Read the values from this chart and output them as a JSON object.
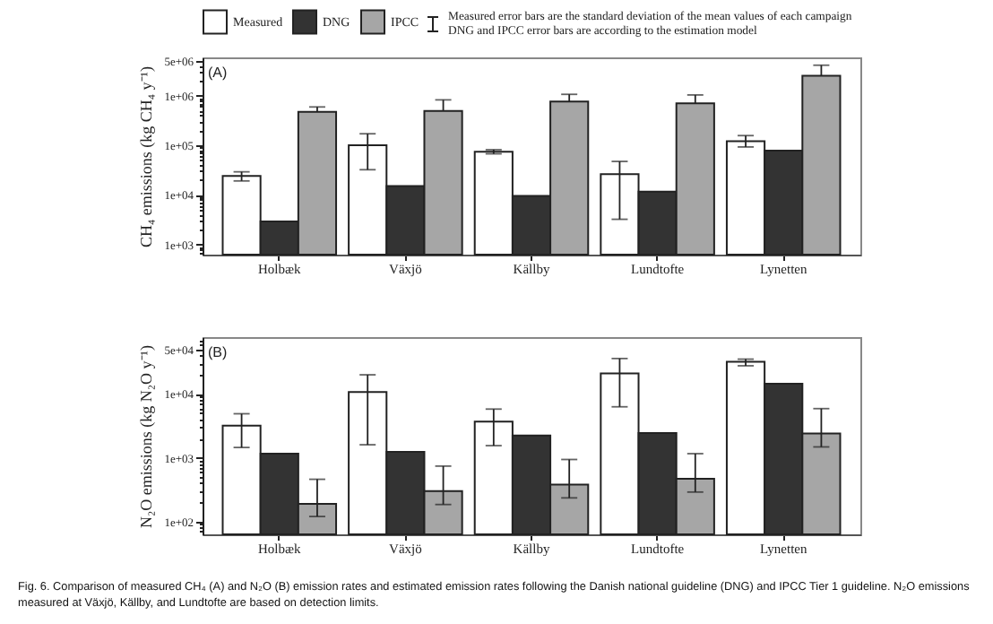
{
  "chart_data": [
    {
      "type": "bar",
      "title": "(A)",
      "ylabel": "CH₄ emissions (kg CH₄ y⁻¹)",
      "categories": [
        "Holbæk",
        "Växjö",
        "Källby",
        "Lundtofte",
        "Lynetten"
      ],
      "series": [
        {
          "name": "Measured",
          "color": "#ffffff",
          "values": [
            24000,
            100000,
            74000,
            26000,
            120000
          ],
          "errors": [
            [
              19000,
              29000
            ],
            [
              32000,
              170000
            ],
            [
              67000,
              81000
            ],
            [
              3200,
              47000
            ],
            [
              92000,
              156000
            ]
          ]
        },
        {
          "name": "DNG",
          "color": "#333333",
          "values": [
            2900,
            15000,
            9500,
            11500,
            78000
          ]
        },
        {
          "name": "IPCC",
          "color": "#a6a6a6",
          "values": [
            470000,
            490000,
            760000,
            700000,
            2500000
          ],
          "errors": [
            [
              470000,
              590000
            ],
            [
              490000,
              820000
            ],
            [
              760000,
              1060000
            ],
            [
              700000,
              1030000
            ],
            [
              2500000,
              4100000
            ]
          ]
        }
      ],
      "log": true,
      "ylim": [
        620,
        5900000
      ],
      "yticks": [
        {
          "value": 700,
          "label": null
        },
        {
          "value": 800,
          "label": null
        },
        {
          "value": 900,
          "label": null
        },
        {
          "value": 1000,
          "label": "1e+03"
        },
        {
          "value": 2000,
          "label": null
        },
        {
          "value": 3000,
          "label": null
        },
        {
          "value": 4000,
          "label": null
        },
        {
          "value": 5000,
          "label": null
        },
        {
          "value": 6000,
          "label": null
        },
        {
          "value": 7000,
          "label": null
        },
        {
          "value": 8000,
          "label": null
        },
        {
          "value": 9000,
          "label": null
        },
        {
          "value": 10000,
          "label": "1e+04"
        },
        {
          "value": 20000,
          "label": null
        },
        {
          "value": 30000,
          "label": null
        },
        {
          "value": 40000,
          "label": null
        },
        {
          "value": 50000,
          "label": null
        },
        {
          "value": 60000,
          "label": null
        },
        {
          "value": 70000,
          "label": null
        },
        {
          "value": 80000,
          "label": null
        },
        {
          "value": 90000,
          "label": null
        },
        {
          "value": 100000,
          "label": "1e+05"
        },
        {
          "value": 200000,
          "label": null
        },
        {
          "value": 300000,
          "label": null
        },
        {
          "value": 400000,
          "label": null
        },
        {
          "value": 500000,
          "label": null
        },
        {
          "value": 600000,
          "label": null
        },
        {
          "value": 700000,
          "label": null
        },
        {
          "value": 800000,
          "label": null
        },
        {
          "value": 900000,
          "label": null
        },
        {
          "value": 1000000,
          "label": "1e+06"
        },
        {
          "value": 2000000,
          "label": null
        },
        {
          "value": 3000000,
          "label": null
        },
        {
          "value": 4000000,
          "label": null
        },
        {
          "value": 5000000,
          "label": "5e+06"
        }
      ],
      "legend": "top",
      "annotations": [
        "Measured error bars are the standard deviation of the mean values of each campaign",
        "DNG and IPCC error bars are according to the estimation model"
      ]
    },
    {
      "type": "bar",
      "title": "(B)",
      "ylabel": "N₂O emissions (kg N₂O y⁻¹)",
      "categories": [
        "Holbæk",
        "Växjö",
        "Källby",
        "Lundtofte",
        "Lynetten"
      ],
      "series": [
        {
          "name": "Measured",
          "color": "#ffffff",
          "values": [
            3200,
            10700,
            3700,
            21000,
            32000
          ],
          "errors": [
            [
              1450,
              4900
            ],
            [
              1600,
              20000
            ],
            [
              1550,
              5800
            ],
            [
              6300,
              36000
            ],
            [
              27700,
              35200
            ]
          ]
        },
        {
          "name": "DNG",
          "color": "#333333",
          "values": [
            1160,
            1240,
            2230,
            2440,
            14500
          ]
        },
        {
          "name": "IPCC",
          "color": "#a6a6a6",
          "values": [
            190,
            300,
            380,
            470,
            2400
          ],
          "errors": [
            [
              120,
              460
            ],
            [
              185,
              740
            ],
            [
              235,
              940
            ],
            [
              290,
              1160
            ],
            [
              1480,
              5900
            ]
          ]
        }
      ],
      "log": true,
      "ylim": [
        63,
        78000
      ],
      "yticks": [
        {
          "value": 70,
          "label": null
        },
        {
          "value": 80,
          "label": null
        },
        {
          "value": 90,
          "label": null
        },
        {
          "value": 100,
          "label": "1e+02"
        },
        {
          "value": 200,
          "label": null
        },
        {
          "value": 300,
          "label": null
        },
        {
          "value": 400,
          "label": null
        },
        {
          "value": 500,
          "label": null
        },
        {
          "value": 600,
          "label": null
        },
        {
          "value": 700,
          "label": null
        },
        {
          "value": 800,
          "label": null
        },
        {
          "value": 900,
          "label": null
        },
        {
          "value": 1000,
          "label": "1e+03"
        },
        {
          "value": 2000,
          "label": null
        },
        {
          "value": 3000,
          "label": null
        },
        {
          "value": 4000,
          "label": null
        },
        {
          "value": 5000,
          "label": null
        },
        {
          "value": 6000,
          "label": null
        },
        {
          "value": 7000,
          "label": null
        },
        {
          "value": 8000,
          "label": null
        },
        {
          "value": 9000,
          "label": null
        },
        {
          "value": 10000,
          "label": "1e+04"
        },
        {
          "value": 20000,
          "label": null
        },
        {
          "value": 30000,
          "label": null
        },
        {
          "value": 40000,
          "label": null
        },
        {
          "value": 50000,
          "label": "5e+04"
        },
        {
          "value": 60000,
          "label": null
        },
        {
          "value": 70000,
          "label": null
        }
      ],
      "annotations": [
        "Fig. 6. Comparison of measured CH₄ (A) and N₂O (B) emission rates and estimated emission rates following the Danish national guideline (DNG) and IPCC Tier 1 guideline. N₂O emissions measured at Växjö, Källby, and Lundtofte are based on detection limits."
      ]
    }
  ]
}
